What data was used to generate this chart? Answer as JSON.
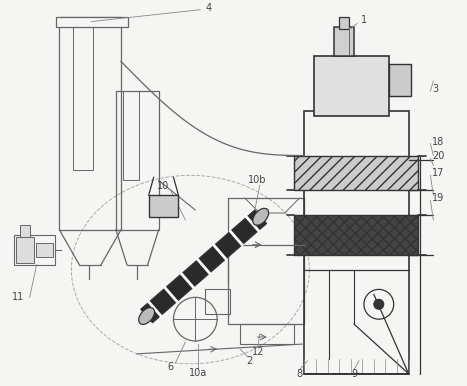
{
  "bg_color": "#f5f5f3",
  "line_color": "#666666",
  "dark_color": "#333333",
  "med_color": "#888888",
  "figsize": [
    4.67,
    3.86
  ],
  "dpi": 100
}
